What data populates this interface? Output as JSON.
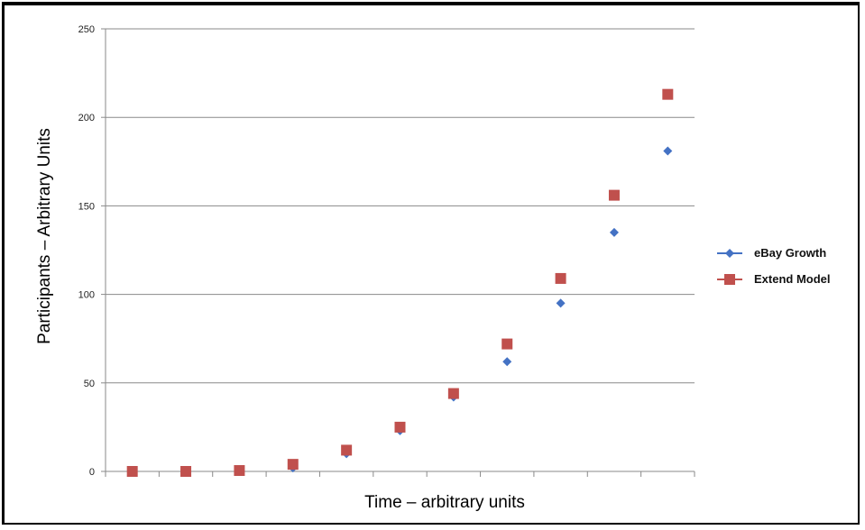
{
  "chart_data": {
    "type": "scatter",
    "xlabel": "Time – arbitrary units",
    "ylabel": "Participants – Arbitrary Units",
    "ylim": [
      0,
      250
    ],
    "yticks": [
      "0",
      "50",
      "100",
      "150",
      "200",
      "250"
    ],
    "x_count": 11,
    "x": [
      1,
      2,
      3,
      4,
      5,
      6,
      7,
      8,
      9,
      10,
      11
    ],
    "series": [
      {
        "name": "eBay Growth",
        "marker": "diamond",
        "color": "#4472c4",
        "values": [
          0,
          0,
          0.3,
          2,
          10,
          23,
          42,
          62,
          95,
          135,
          181
        ]
      },
      {
        "name": "Extend Model",
        "marker": "square",
        "color": "#c0504d",
        "values": [
          0,
          0,
          0.5,
          4,
          12,
          25,
          44,
          72,
          109,
          156,
          213
        ]
      }
    ],
    "grid": true,
    "legend": "right"
  }
}
